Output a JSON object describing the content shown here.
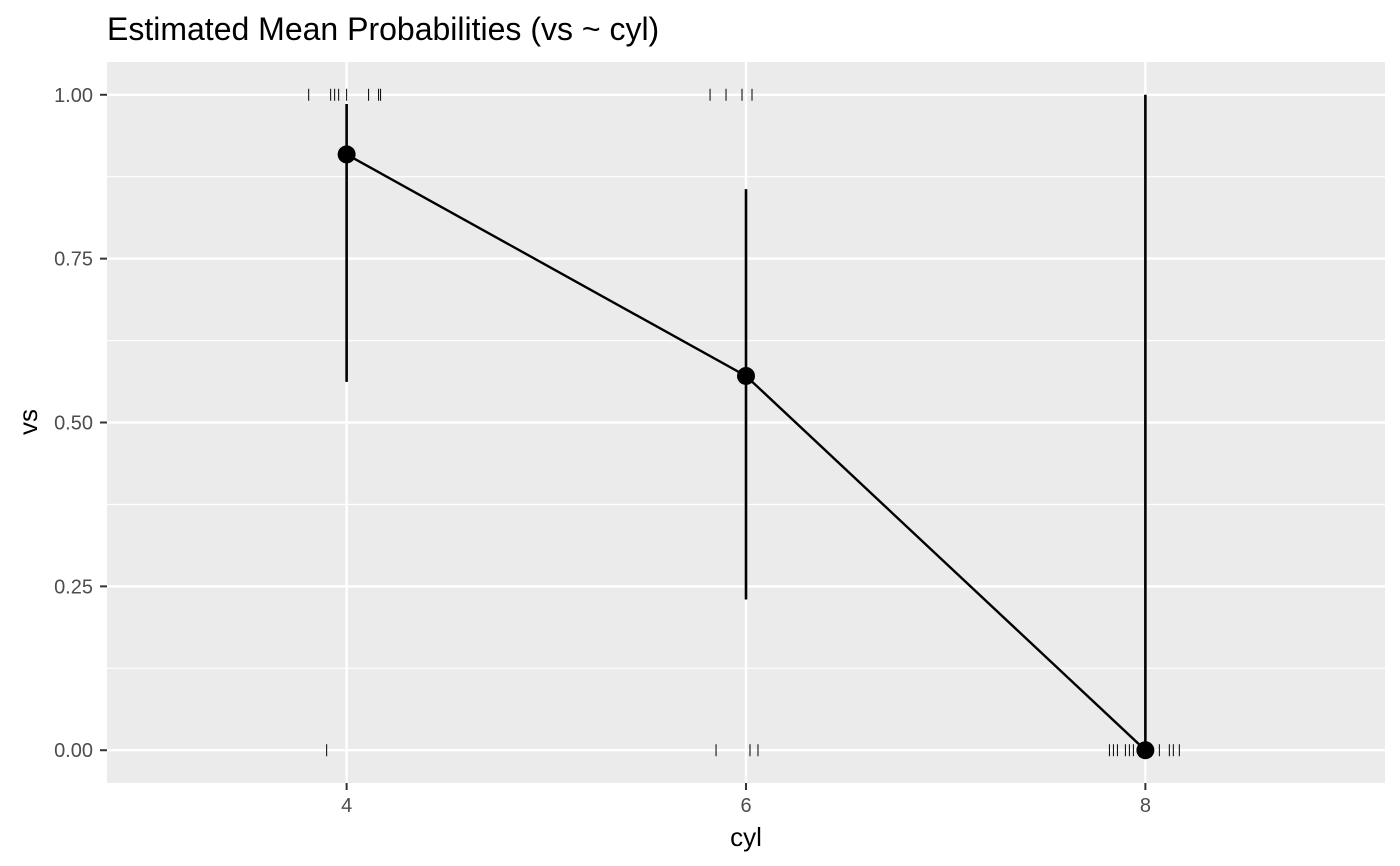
{
  "chart_data": {
    "type": "line",
    "title": "Estimated Mean Probabilities (vs ~ cyl)",
    "xlabel": "cyl",
    "ylabel": "vs",
    "xlim": [
      2.8,
      9.2
    ],
    "ylim": [
      -0.05,
      1.05
    ],
    "x_ticks": [
      4,
      6,
      8
    ],
    "x_tick_labels": [
      "4",
      "6",
      "8"
    ],
    "y_ticks": [
      0,
      0.25,
      0.5,
      0.75,
      1
    ],
    "y_tick_labels": [
      "0.00",
      "0.25",
      "0.50",
      "0.75",
      "1.00"
    ],
    "grid": true,
    "series": [
      {
        "x": [
          4,
          6,
          8
        ],
        "y": [
          0.909,
          0.571,
          0.0
        ],
        "lower": [
          0.562,
          0.23,
          0.0
        ],
        "upper": [
          0.986,
          0.856,
          1.0
        ]
      }
    ],
    "rug_top": {
      "y": 1,
      "x": [
        3.81,
        3.92,
        3.94,
        3.96,
        4.0,
        4.11,
        4.16,
        4.17,
        5.82,
        5.9,
        5.98,
        6.03
      ]
    },
    "rug_bottom": {
      "y": 0,
      "x": [
        3.9,
        5.85,
        6.02,
        6.06,
        7.82,
        7.84,
        7.86,
        7.9,
        7.92,
        7.94,
        7.97,
        8.07,
        8.12,
        8.14,
        8.17
      ]
    },
    "colors": {
      "panel_background": "#ebebeb",
      "grid_major": "#ffffff",
      "line": "#000000",
      "point": "#000000",
      "tick_label": "#4d4d4d"
    }
  }
}
